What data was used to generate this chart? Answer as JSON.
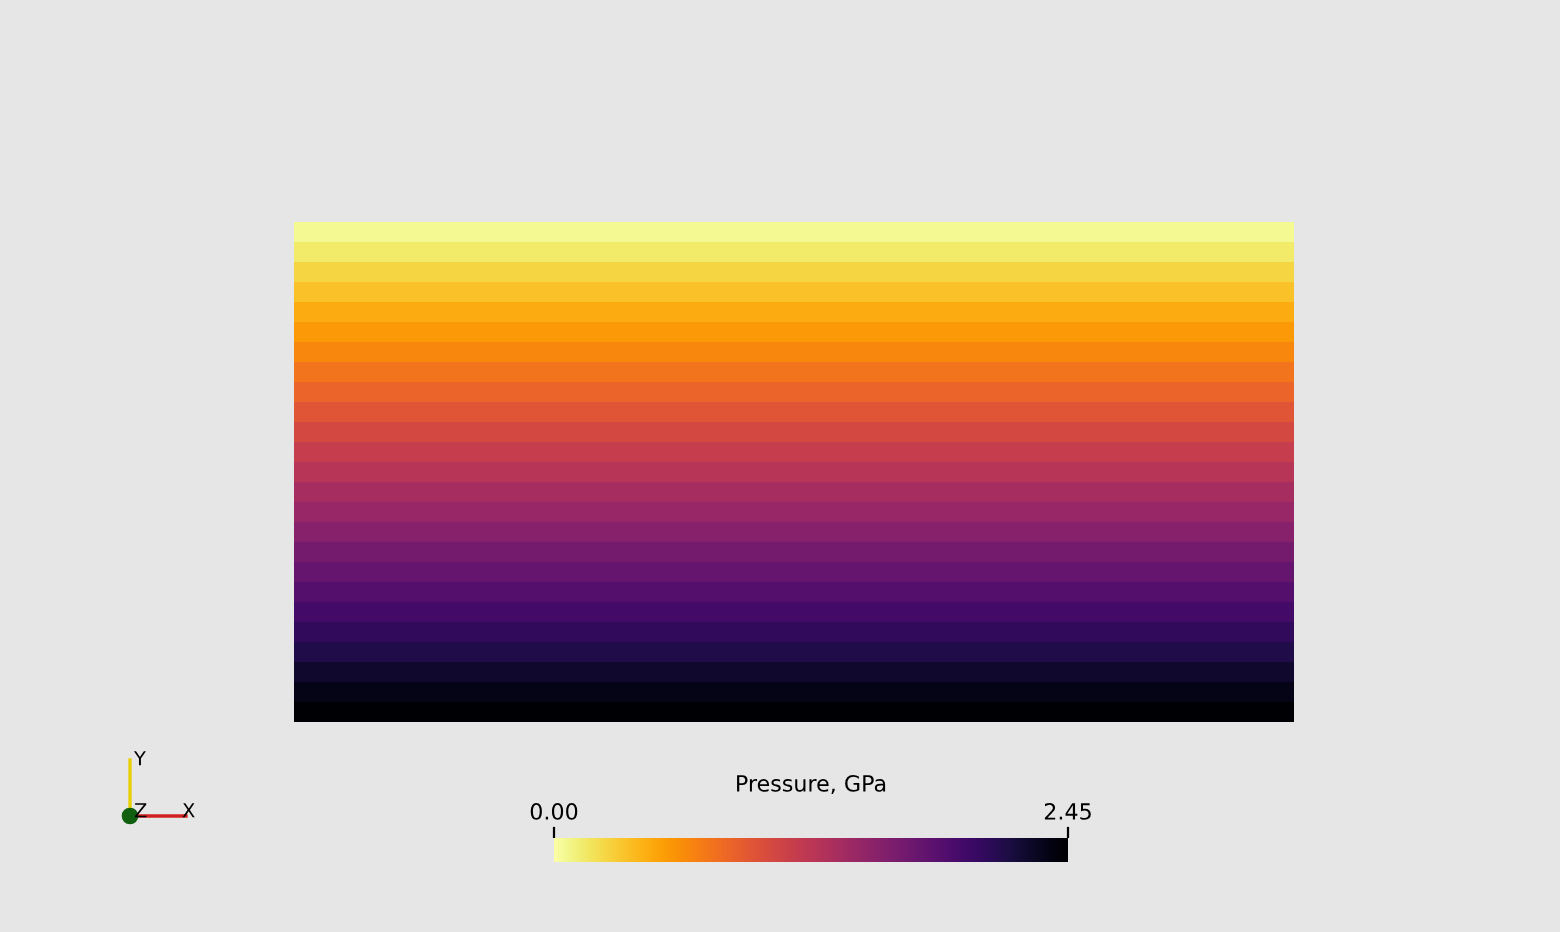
{
  "chart_data": {
    "type": "heatmap",
    "clabel": "Pressure, GPa",
    "categories": [
      null
    ],
    "y_categories": [
      null,
      null,
      null,
      null,
      null,
      null,
      null,
      null,
      null,
      null,
      null,
      null,
      null,
      null,
      null,
      null,
      null,
      null,
      null,
      null,
      null,
      null,
      null,
      null,
      null
    ],
    "cells": [
      [
        0.05
      ],
      [
        0.15
      ],
      [
        0.25
      ],
      [
        0.35
      ],
      [
        0.45
      ],
      [
        0.55
      ],
      [
        0.65
      ],
      [
        0.75
      ],
      [
        0.85
      ],
      [
        0.95
      ],
      [
        1.05
      ],
      [
        1.15
      ],
      [
        1.25
      ],
      [
        1.35
      ],
      [
        1.45
      ],
      [
        1.55
      ],
      [
        1.65
      ],
      [
        1.75
      ],
      [
        1.85
      ],
      [
        1.95
      ],
      [
        2.05
      ],
      [
        2.15
      ],
      [
        2.25
      ],
      [
        2.35
      ],
      [
        2.45
      ]
    ],
    "clim": [
      0,
      2.45
    ],
    "cticks": [
      {
        "value": 0,
        "label": "0.00"
      },
      {
        "value": 2.45,
        "label": "2.45"
      }
    ],
    "tick_labels": false,
    "annotations": [
      "Y",
      "Z",
      "X"
    ]
  }
}
